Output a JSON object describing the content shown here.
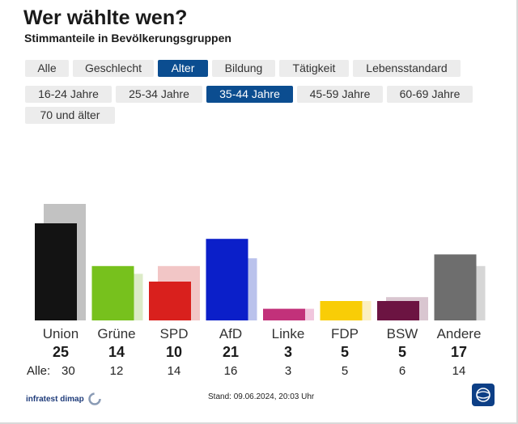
{
  "header": {
    "title": "Wer wählte wen?",
    "subtitle": "Stimmanteile in Bevölkerungsgruppen"
  },
  "tabs": [
    {
      "label": "Alle",
      "active": false
    },
    {
      "label": "Geschlecht",
      "active": false
    },
    {
      "label": "Alter",
      "active": true
    },
    {
      "label": "Bildung",
      "active": false
    },
    {
      "label": "Tätigkeit",
      "active": false
    },
    {
      "label": "Lebensstandard",
      "active": false
    }
  ],
  "subtabs": [
    {
      "label": "16-24 Jahre",
      "active": false
    },
    {
      "label": "25-34 Jahre",
      "active": false
    },
    {
      "label": "35-44 Jahre",
      "active": true
    },
    {
      "label": "45-59 Jahre",
      "active": false
    },
    {
      "label": "60-69 Jahre",
      "active": false
    },
    {
      "label": "70 und älter",
      "active": false
    }
  ],
  "chart_data": {
    "type": "bar",
    "title": "Wer wählte wen?",
    "subtitle": "Stimmanteile in Bevölkerungsgruppen",
    "categories": [
      "Union",
      "Grüne",
      "SPD",
      "AfD",
      "Linke",
      "FDP",
      "BSW",
      "Andere"
    ],
    "series": [
      {
        "name": "35-44 Jahre",
        "values": [
          25,
          14,
          10,
          21,
          3,
          5,
          5,
          17
        ]
      },
      {
        "name": "Alle",
        "values": [
          30,
          12,
          14,
          16,
          3,
          5,
          6,
          14
        ]
      }
    ],
    "colors": [
      "#131313",
      "#77c11d",
      "#d9201d",
      "#0b1fc9",
      "#c2317a",
      "#f9cd06",
      "#6c1442",
      "#6e6e6e"
    ],
    "faded_colors": [
      "#c2c2c2",
      "#dcebc7",
      "#f2c6c6",
      "#bac2ec",
      "#f1c6dd",
      "#fbefc2",
      "#d9c6d0",
      "#d6d6d6"
    ],
    "row_label_all": "Alle:",
    "ylim": [
      0,
      30
    ],
    "grid": false,
    "legend": "none"
  },
  "footer": {
    "source": "infratest dimap",
    "stand": "Stand: 09.06.2024, 20:03 Uhr"
  }
}
